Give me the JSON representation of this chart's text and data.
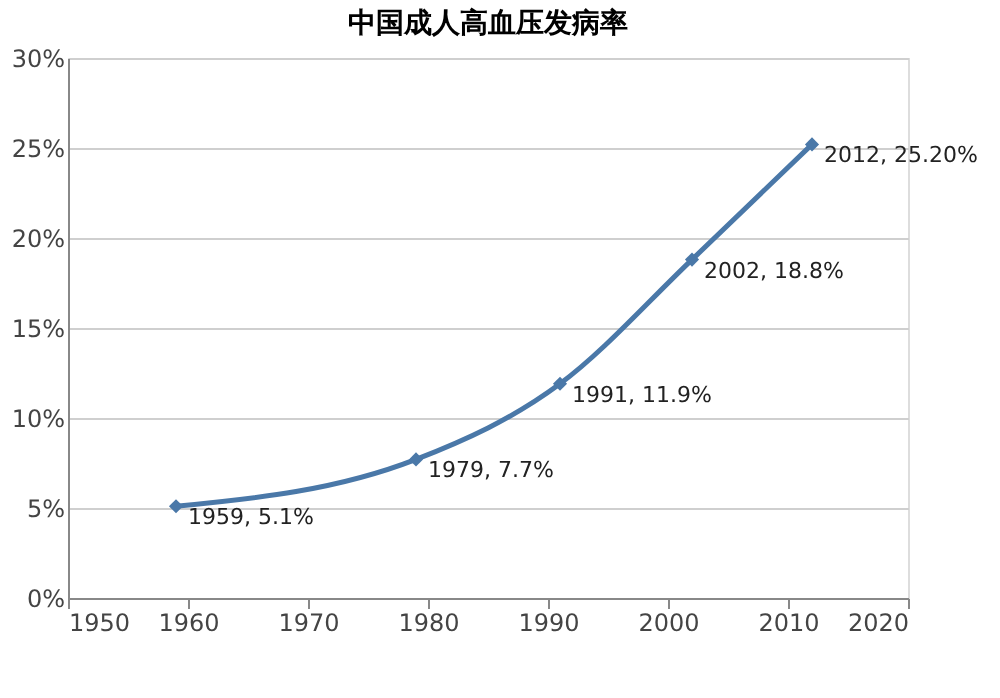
{
  "chart_data": {
    "type": "line",
    "title": "中国成人高血压发病率",
    "x": [
      1959,
      1979,
      1991,
      2002,
      2012
    ],
    "series": [
      {
        "color": "#4a78a8",
        "values": [
          5.1,
          7.7,
          11.9,
          18.8,
          25.2
        ],
        "value_labels": [
          "1959, 5.1%",
          "1979, 7.7%",
          "1991, 11.9%",
          "2002, 18.8%",
          "2012, 25.20%"
        ]
      }
    ],
    "xlim": [
      1950,
      2020
    ],
    "xticks": [
      1950,
      1960,
      1970,
      1980,
      1990,
      2000,
      2010,
      2020
    ],
    "ylim": [
      0,
      30
    ],
    "yticks": [
      {
        "value": 0,
        "label": "0%"
      },
      {
        "value": 5,
        "label": "5%"
      },
      {
        "value": 10,
        "label": "10%"
      },
      {
        "value": 15,
        "label": "15%"
      },
      {
        "value": 20,
        "label": "20%"
      },
      {
        "value": 25,
        "label": "25%"
      },
      {
        "value": 30,
        "label": "30%"
      }
    ],
    "grid": "y",
    "marker": "diamond",
    "line_style": "solid"
  }
}
